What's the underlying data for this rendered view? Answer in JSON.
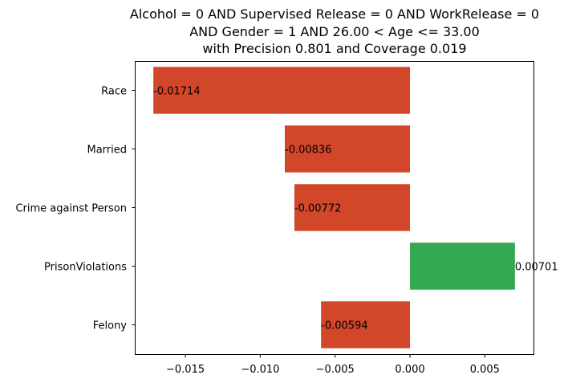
{
  "chart_data": {
    "type": "bar",
    "orientation": "horizontal",
    "title_lines": [
      "Alcohol = 0 AND Supervised Release = 0 AND WorkRelease = 0",
      "AND Gender = 1 AND 26.00 < Age <= 33.00",
      "with Precision 0.801 and Coverage 0.019"
    ],
    "categories": [
      "Race",
      "Married",
      "Crime against Person",
      "PrisonViolations",
      "Felony"
    ],
    "values": [
      -0.01714,
      -0.00836,
      -0.00772,
      0.00701,
      -0.00594
    ],
    "value_labels": [
      "-0.01714",
      "-0.00836",
      "-0.00772",
      "0.00701",
      "-0.00594"
    ],
    "xlim": [
      -0.01838,
      0.00825
    ],
    "x_ticks": [
      -0.015,
      -0.01,
      -0.005,
      0.0,
      0.005
    ],
    "x_tick_labels": [
      "−0.015",
      "−0.010",
      "−0.005",
      "0.000",
      "0.005"
    ],
    "xlabel": "",
    "ylabel": "",
    "grid": false,
    "legend": null,
    "colors": {
      "negative": "#d2462a",
      "positive": "#32a852"
    }
  }
}
